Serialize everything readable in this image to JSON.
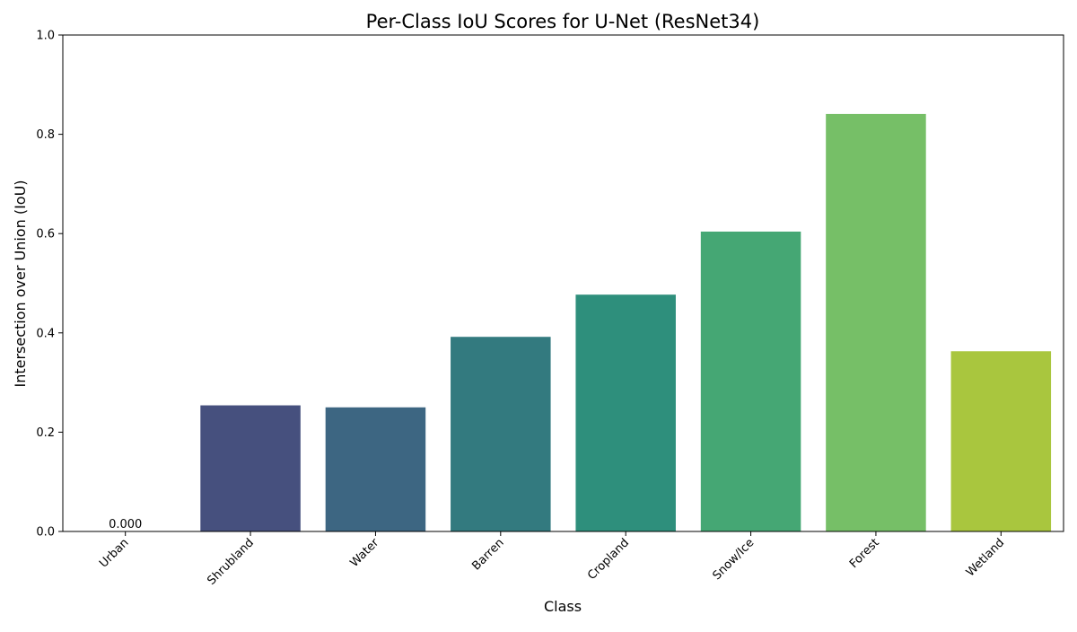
{
  "chart_data": {
    "type": "bar",
    "title": "Per-Class IoU Scores for U-Net (ResNet34)",
    "xlabel": "Class",
    "ylabel": "Intersection over Union (IoU)",
    "categories": [
      "Urban",
      "Shrubland",
      "Water",
      "Barren",
      "Cropland",
      "Snow/Ice",
      "Forest",
      "Wetland"
    ],
    "values": [
      0.0,
      0.254,
      0.25,
      0.392,
      0.477,
      0.604,
      0.841,
      0.363
    ],
    "colors": [
      "#440154",
      "#46507e",
      "#3d6682",
      "#337a7f",
      "#2e8f7c",
      "#45a774",
      "#76bf67",
      "#a9c63e"
    ],
    "data_labels": [
      "0.000",
      "",
      "",
      "",
      "",
      "",
      "",
      ""
    ],
    "ylim": [
      0,
      1
    ],
    "yticks": [
      "0.0",
      "0.2",
      "0.4",
      "0.6",
      "0.8",
      "1.0"
    ],
    "grid": false,
    "legend": false
  }
}
